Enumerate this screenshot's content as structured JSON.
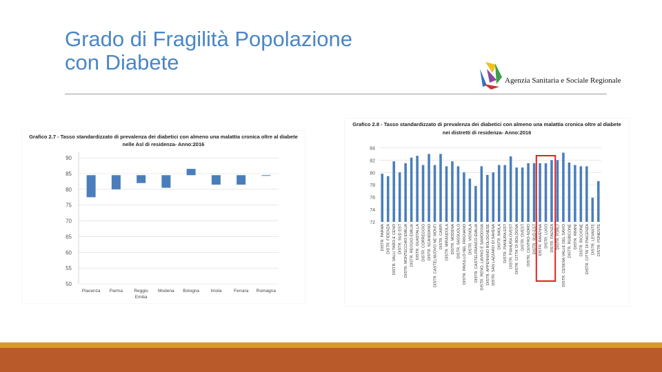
{
  "slide": {
    "title_line1": "Grado di Fragilità Popolazione",
    "title_line2": "con Diabete",
    "agency": "Agenzia Sanitaria e Sociale Regionale",
    "colors": {
      "title": "#4a86c5",
      "bar": "#4a7ebb",
      "highlight": "#e02020",
      "footer": "#b95a2a",
      "footer_line": "#d99a2b"
    }
  },
  "chart_data": [
    {
      "type": "bar",
      "title": "Grafico 2.7 - Tasso standardizzato di prevalenza dei diabetici con almeno una malattia cronica oltre al diabete",
      "subtitle": "nelle Asl di residenza- Anno:2016",
      "categories": [
        "Piacenza",
        "Parma",
        "Reggio Emilia",
        "Modena",
        "Bologna",
        "Imola",
        "Ferrara",
        "Romagna"
      ],
      "category_lines": [
        [
          "Piacenza"
        ],
        [
          "Parma"
        ],
        [
          "Reggio",
          "Emilia"
        ],
        [
          "Modena"
        ],
        [
          "Bologna"
        ],
        [
          "Imola"
        ],
        [
          "Ferrara"
        ],
        [
          "Romagna"
        ]
      ],
      "values": [
        77.5,
        80.0,
        82.0,
        80.5,
        86.5,
        81.5,
        81.5,
        84.5
      ],
      "baseline": 84.5,
      "yticks": [
        50,
        55,
        60,
        65,
        70,
        75,
        80,
        85,
        90
      ],
      "ylim": [
        50,
        92
      ],
      "grid": true
    },
    {
      "type": "bar",
      "title": "Grafico 2.8 - Tasso standardizzato di prevalenza dei diabetici con almeno una malattia cronica oltre al diabete",
      "subtitle": "nei distretti di residenza- Anno:2016",
      "categories": [
        "DISTR. PARMA",
        "DISTR. FIDENZA",
        "DISTR. VALLI TARO E CENO",
        "DISTR. SUD EST",
        "DISTR. MONTECCHIO EMILIA",
        "DISTR. REGGIO EMILIA",
        "DISTR. GUASTALLA",
        "DISTR. CORREGGIO",
        "DISTR. SCANDIANO",
        "DISTR. CASTELNUOVO NE' MONTI",
        "DISTR. CARPI",
        "DISTR. MIRANDOLA",
        "DISTR. MODENA",
        "DISTR. SASSUOLO",
        "DISTR. PAVULLO NEL FRIGNANO",
        "DISTR. VIGNOLA",
        "DISTR. CASTELFRANCO EMILIA",
        "DISTR. RENO, LAVINO E SAMOGGIA",
        "DISTR. APPENNINO BOLOGNESE",
        "DISTR. SAN LAZZARO DI SAVENA",
        "DISTR. IMOLA",
        "DISTR. PIANURA EST",
        "DISTR. PIANURA OVEST",
        "DISTR. CITTA' DI BOLOGNA",
        "DISTR. OVEST",
        "DISTR. CENTRO-NORD",
        "DISTR. SUD-EST",
        "DISTR. RAVENNA",
        "DISTR. LUGO",
        "DISTR. FAENZA",
        "DISTR. FORLI'",
        "DISTR. CESENA VALLE DEL SAVIO",
        "DISTR. RUBICONE",
        "DISTR. RIMINI",
        "DISTR. RICCIONE",
        "DISTR. CITTA' DI PIACENZA",
        "DISTR. LEVANTE",
        "DISTR. PONENTE"
      ],
      "values": [
        79.8,
        79.4,
        81.8,
        80.0,
        81.5,
        82.4,
        82.7,
        81.2,
        83.0,
        81.2,
        83.0,
        81.0,
        81.8,
        81.0,
        80.0,
        79.0,
        77.8,
        81.0,
        79.6,
        80.0,
        81.2,
        81.2,
        82.6,
        80.8,
        80.8,
        81.5,
        81.5,
        81.5,
        81.5,
        82.0,
        82.0,
        83.2,
        81.6,
        81.2,
        81.0,
        81.0,
        75.9,
        78.6
      ],
      "highlight_categories": [
        "DISTR. RAVENNA",
        "DISTR. LUGO",
        "DISTR. FAENZA"
      ],
      "yticks": [
        72,
        74,
        76,
        78,
        80,
        82,
        84
      ],
      "ylim": [
        72,
        84.5
      ],
      "grid": true
    }
  ]
}
